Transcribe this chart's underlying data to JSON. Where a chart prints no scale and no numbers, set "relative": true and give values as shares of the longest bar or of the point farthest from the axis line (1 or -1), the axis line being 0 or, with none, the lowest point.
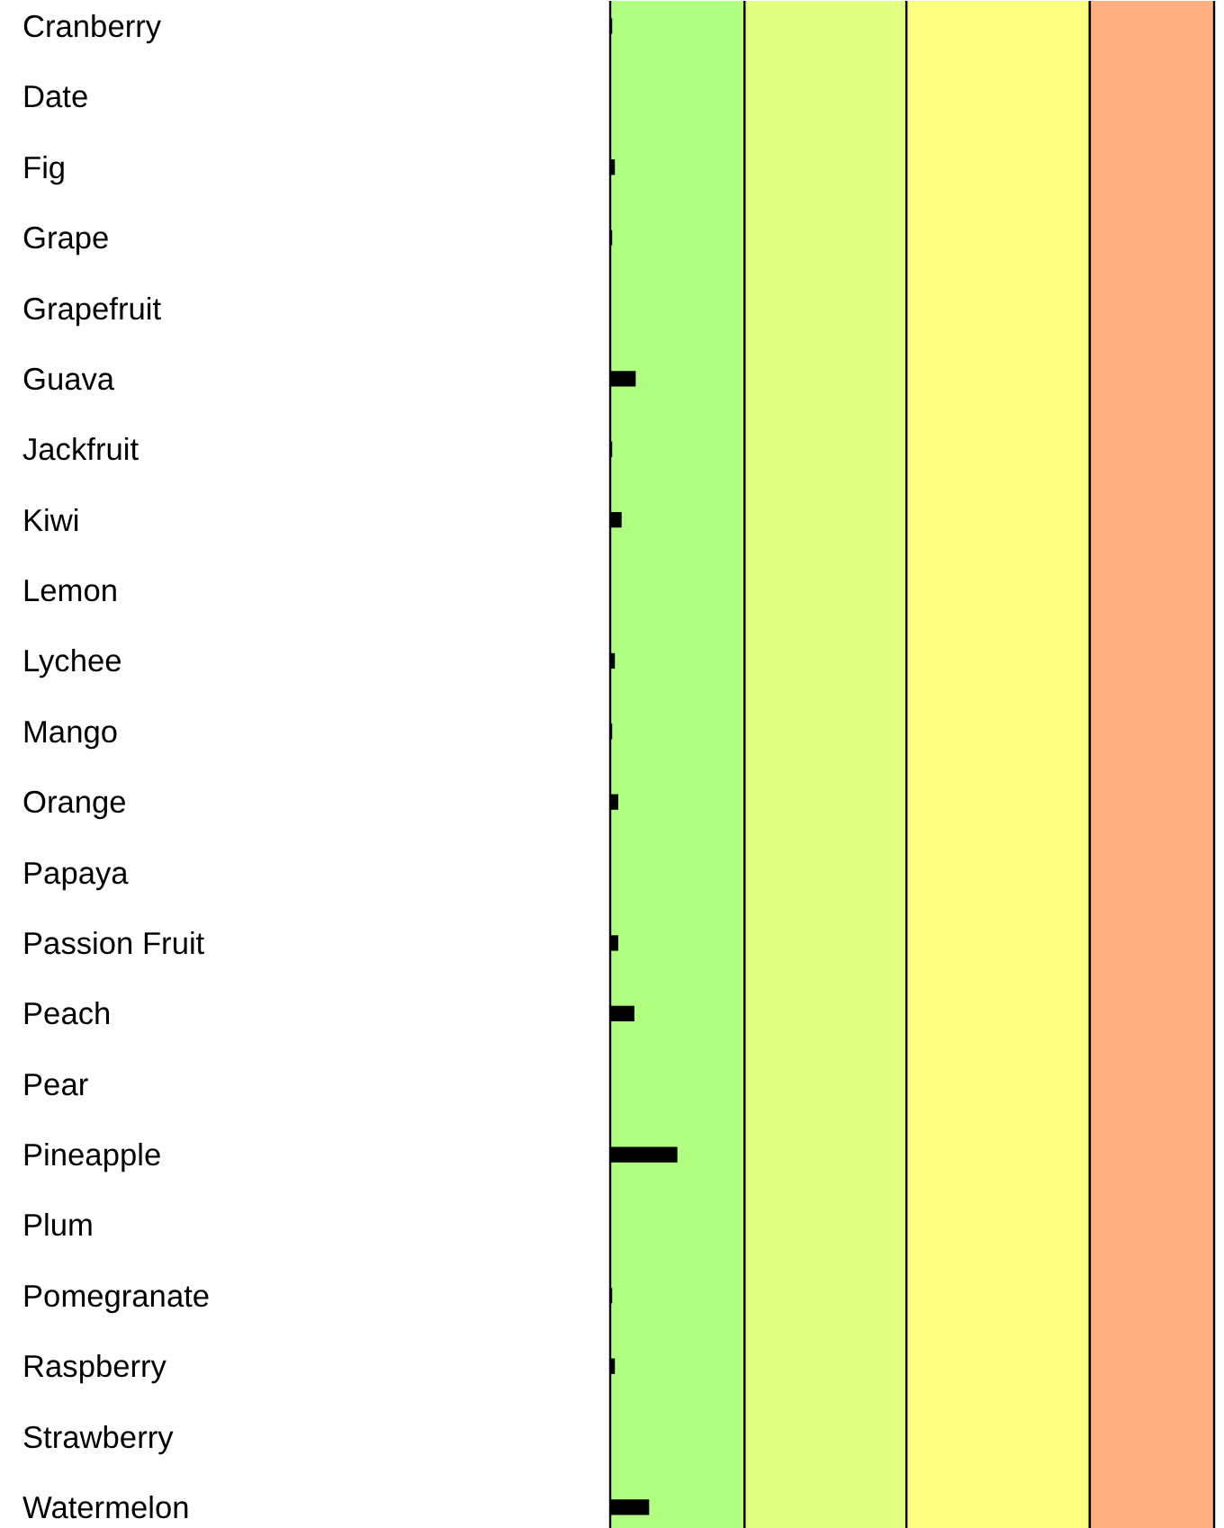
{
  "chart_data": {
    "type": "bar",
    "orientation": "horizontal",
    "relative": true,
    "color": "#000000",
    "categories": [
      "Cranberry",
      "Date",
      "Fig",
      "Grape",
      "Grapefruit",
      "Guava",
      "Jackfruit",
      "Kiwi",
      "Lemon",
      "Lychee",
      "Mango",
      "Orange",
      "Papaya",
      "Passion Fruit",
      "Peach",
      "Pear",
      "Pineapple",
      "Plum",
      "Pomegranate",
      "Raspberry",
      "Strawberry",
      "Watermelon"
    ],
    "values": [
      0.03,
      0,
      0.07,
      0.03,
      0,
      0.38,
      0.03,
      0.17,
      0,
      0.07,
      0.03,
      0.12,
      0,
      0.12,
      0.36,
      0,
      1,
      0,
      0.03,
      0.07,
      0,
      0.58
    ],
    "bands": [
      {
        "axis": "x",
        "from": 0,
        "to": 2.0,
        "color": "#b0ff80"
      },
      {
        "axis": "x",
        "from": 2.0,
        "to": 4.41,
        "color": "#e0ff80"
      },
      {
        "axis": "x",
        "from": 4.41,
        "to": 7.14,
        "color": "#ffff80"
      },
      {
        "axis": "x",
        "from": 7.14,
        "to": 8.99,
        "color": "#ffb080"
      }
    ],
    "grid": false
  }
}
